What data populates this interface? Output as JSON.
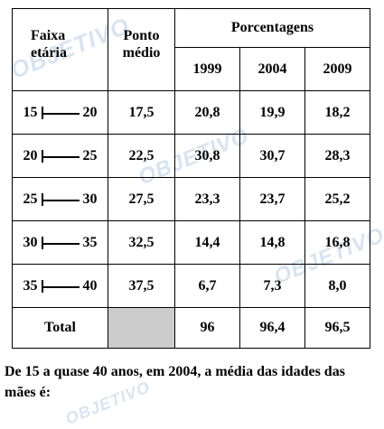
{
  "watermark": "OBJETIVO",
  "colors": {
    "blank_cell": "#cccccc",
    "watermark": "#6ea0cd"
  },
  "table": {
    "head_faixa_l1": "Faixa",
    "head_faixa_l2": "etária",
    "head_ponto_l1": "Ponto",
    "head_ponto_l2": "médio",
    "head_porcentagens": "Porcentagens",
    "years": [
      "1999",
      "2004",
      "2009"
    ],
    "rows": [
      {
        "lo": "15",
        "hi": "20",
        "ponto": "17,5",
        "v": [
          "20,8",
          "19,9",
          "18,2"
        ]
      },
      {
        "lo": "20",
        "hi": "25",
        "ponto": "22,5",
        "v": [
          "30,8",
          "30,7",
          "28,3"
        ]
      },
      {
        "lo": "25",
        "hi": "30",
        "ponto": "27,5",
        "v": [
          "23,3",
          "23,7",
          "25,2"
        ]
      },
      {
        "lo": "30",
        "hi": "35",
        "ponto": "32,5",
        "v": [
          "14,4",
          "14,8",
          "16,8"
        ]
      },
      {
        "lo": "35",
        "hi": "40",
        "ponto": "37,5",
        "v": [
          "6,7",
          "7,3",
          "8,0"
        ]
      }
    ],
    "total_label": "Total",
    "totals": [
      "96",
      "96,4",
      "96,5"
    ]
  },
  "caption": "De 15 a quase 40 anos, em 2004, a média das idades das mães é:"
}
